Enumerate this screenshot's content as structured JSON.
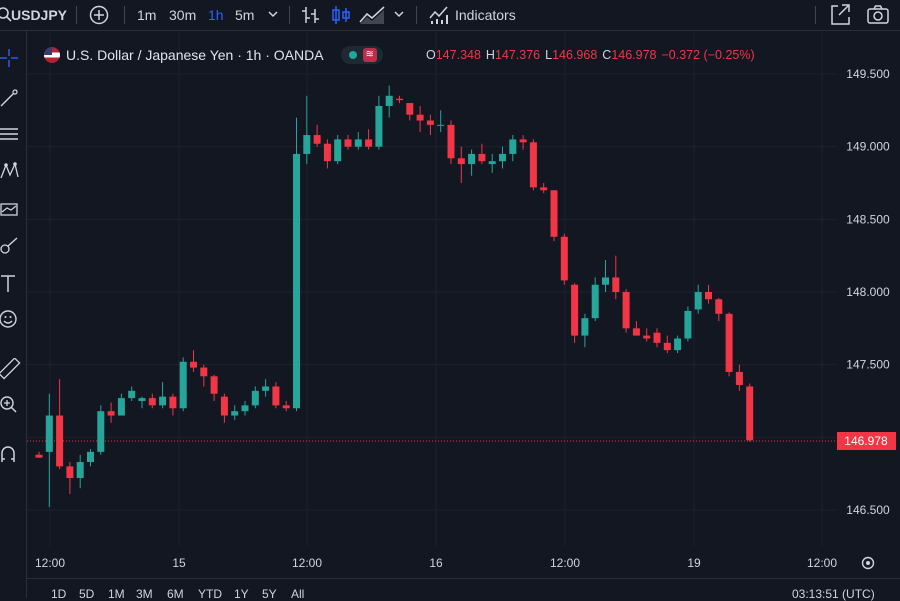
{
  "topbar": {
    "symbol": "USDJPY",
    "intervals": [
      "1m",
      "30m",
      "1h",
      "5m"
    ],
    "active_interval": "1h",
    "indicators_label": "Indicators"
  },
  "legend": {
    "title": "U.S. Dollar / Japanese Yen · 1h · OANDA",
    "open_key": "O",
    "open": "147.348",
    "high_key": "H",
    "high": "147.376",
    "low_key": "L",
    "low": "146.968",
    "close_key": "C",
    "close": "146.978",
    "change": "−0.372 (−0.25%)"
  },
  "price_label": "146.978",
  "bottombar": {
    "ranges": [
      "1D",
      "5D",
      "1M",
      "3M",
      "6M",
      "YTD",
      "1Y",
      "5Y",
      "All"
    ],
    "clock": "03:13:51 (UTC)"
  },
  "colors": {
    "up": "#26a69a",
    "down": "#f23645",
    "bg": "#131722",
    "accent": "#2962ff"
  },
  "chart_data": {
    "type": "candlestick",
    "y_ticks": [
      "146.500",
      "147.000",
      "147.500",
      "148.000",
      "148.500",
      "149.000",
      "149.500"
    ],
    "x_ticks": [
      "12:00",
      "15",
      "12:00",
      "16",
      "12:00",
      "19",
      "12:00"
    ],
    "ylim": [
      146.2,
      149.65
    ],
    "last_price": 146.978,
    "candles": [
      [
        146.88,
        146.9,
        146.86,
        146.86
      ],
      [
        146.9,
        147.3,
        146.52,
        147.15
      ],
      [
        147.15,
        147.4,
        146.78,
        146.8
      ],
      [
        146.8,
        146.83,
        146.61,
        146.72
      ],
      [
        146.72,
        146.88,
        146.65,
        146.83
      ],
      [
        146.83,
        146.92,
        146.8,
        146.9
      ],
      [
        146.9,
        147.22,
        146.88,
        147.18
      ],
      [
        147.18,
        147.24,
        147.1,
        147.15
      ],
      [
        147.15,
        147.3,
        147.15,
        147.27
      ],
      [
        147.27,
        147.35,
        147.25,
        147.32
      ],
      [
        147.25,
        147.28,
        147.2,
        147.27
      ],
      [
        147.27,
        147.3,
        147.2,
        147.22
      ],
      [
        147.22,
        147.38,
        147.2,
        147.28
      ],
      [
        147.28,
        147.3,
        147.15,
        147.2
      ],
      [
        147.2,
        147.55,
        147.18,
        147.52
      ],
      [
        147.52,
        147.6,
        147.45,
        147.48
      ],
      [
        147.48,
        147.5,
        147.35,
        147.42
      ],
      [
        147.42,
        147.43,
        147.25,
        147.3
      ],
      [
        147.28,
        147.3,
        147.1,
        147.15
      ],
      [
        147.15,
        147.22,
        147.12,
        147.18
      ],
      [
        147.18,
        147.25,
        147.15,
        147.22
      ],
      [
        147.22,
        147.35,
        147.2,
        147.32
      ],
      [
        147.32,
        147.4,
        147.28,
        147.35
      ],
      [
        147.35,
        147.38,
        147.2,
        147.22
      ],
      [
        147.22,
        147.25,
        147.18,
        147.2
      ],
      [
        147.2,
        149.2,
        147.18,
        148.95
      ],
      [
        148.95,
        149.35,
        148.88,
        149.08
      ],
      [
        149.08,
        149.15,
        149.0,
        149.02
      ],
      [
        149.02,
        149.05,
        148.85,
        148.9
      ],
      [
        148.9,
        149.08,
        148.88,
        149.05
      ],
      [
        149.05,
        149.08,
        148.98,
        149.0
      ],
      [
        149.0,
        149.1,
        148.98,
        149.05
      ],
      [
        149.05,
        149.12,
        148.98,
        149.0
      ],
      [
        149.0,
        149.35,
        148.98,
        149.28
      ],
      [
        149.28,
        149.42,
        149.2,
        149.35
      ],
      [
        149.33,
        149.35,
        149.3,
        149.32
      ],
      [
        149.3,
        149.3,
        149.18,
        149.22
      ],
      [
        149.22,
        149.28,
        149.1,
        149.18
      ],
      [
        149.18,
        149.22,
        149.08,
        149.15
      ],
      [
        149.15,
        149.25,
        149.1,
        149.15
      ],
      [
        149.15,
        149.18,
        148.88,
        148.92
      ],
      [
        148.92,
        149.0,
        148.75,
        148.88
      ],
      [
        148.88,
        148.98,
        148.8,
        148.95
      ],
      [
        148.95,
        149.02,
        148.88,
        148.9
      ],
      [
        148.88,
        148.95,
        148.82,
        148.9
      ],
      [
        148.9,
        149.0,
        148.85,
        148.95
      ],
      [
        148.95,
        149.08,
        148.9,
        149.05
      ],
      [
        149.05,
        149.08,
        148.98,
        149.03
      ],
      [
        149.03,
        149.05,
        148.7,
        148.72
      ],
      [
        148.72,
        148.75,
        148.68,
        148.7
      ],
      [
        148.7,
        148.7,
        148.35,
        148.38
      ],
      [
        148.38,
        148.4,
        148.05,
        148.08
      ],
      [
        148.05,
        148.06,
        147.65,
        147.7
      ],
      [
        147.7,
        147.85,
        147.62,
        147.82
      ],
      [
        147.82,
        148.1,
        147.8,
        148.05
      ],
      [
        148.05,
        148.22,
        148.0,
        148.1
      ],
      [
        148.1,
        148.25,
        147.95,
        148.0
      ],
      [
        148.0,
        148.02,
        147.72,
        147.75
      ],
      [
        147.75,
        147.8,
        147.7,
        147.7
      ],
      [
        147.7,
        147.75,
        147.66,
        147.68
      ],
      [
        147.72,
        147.75,
        147.62,
        147.65
      ],
      [
        147.65,
        147.7,
        147.58,
        147.6
      ],
      [
        147.6,
        147.7,
        147.58,
        147.68
      ],
      [
        147.68,
        147.9,
        147.66,
        147.87
      ],
      [
        147.88,
        148.05,
        147.85,
        148.0
      ],
      [
        148.0,
        148.05,
        147.92,
        147.95
      ],
      [
        147.95,
        147.96,
        147.8,
        147.85
      ],
      [
        147.85,
        147.86,
        147.42,
        147.45
      ],
      [
        147.45,
        147.5,
        147.32,
        147.36
      ],
      [
        147.35,
        147.37,
        146.97,
        146.98
      ]
    ]
  }
}
